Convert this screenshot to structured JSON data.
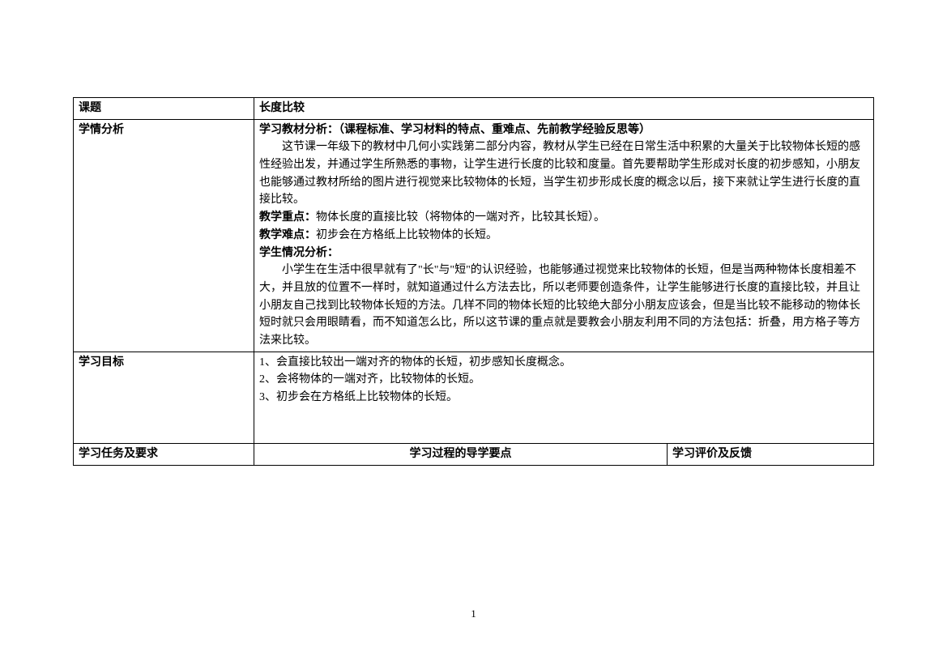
{
  "table": {
    "row1": {
      "label": "课题",
      "value": "长度比较"
    },
    "row2": {
      "label": "学情分析",
      "heading1": "学习教材分析：（课程标准、学习材料的特点、重难点、先前教学经验反思等）",
      "para1": "这节课一年级下的教材中几何小实践第二部分内容，教材从学生已经在日常生活中积累的大量关于比较物体长短的感性经验出发，并通过学生所熟悉的事物，让学生进行长度的比较和度量。首先要帮助学生形成对长度的初步感知，小朋友也能够通过教材所给的图片进行视觉来比较物体的长短，当学生初步形成长度的概念以后，接下来就让学生进行长度的直接比较。",
      "emp_label": "教学重点：",
      "emp_text": "物体长度的直接比较（将物体的一端对齐，比较其长短）。",
      "diff_label": "教学难点：",
      "diff_text": "初步会在方格纸上比较物体的长短。",
      "heading2": "学生情况分析：",
      "para2": "小学生在生活中很早就有了\"长\"与\"短\"的认识经验，也能够通过视觉来比较物体的长短，但是当两种物体长度相差不大，并且放的位置不一样时，就知道通过什么方法去比，所以老师要创造条件，让学生能够进行长度的直接比较，并且让小朋友自己找到比较物体长短的方法。几样不同的物体长短的比较绝大部分小朋友应该会，但是当比较不能移动的物体长短时就只会用眼睛看，而不知道怎么比，所以这节课的重点就是要教会小朋友利用不同的方法包括：折叠，用方格子等方法来比较。"
    },
    "row3": {
      "label": "学习目标",
      "line1": "1、会直接比较出一端对齐的物体的长短，初步感知长度概念。",
      "line2": "2、会将物体的一端对齐，比较物体的长短。",
      "line3": "3、初步会在方格纸上比较物体的长短。"
    },
    "row4": {
      "col1": "学习任务及要求",
      "col2": "学习过程的导学要点",
      "col3": "学习评价及反馈"
    }
  },
  "pageNumber": "1"
}
